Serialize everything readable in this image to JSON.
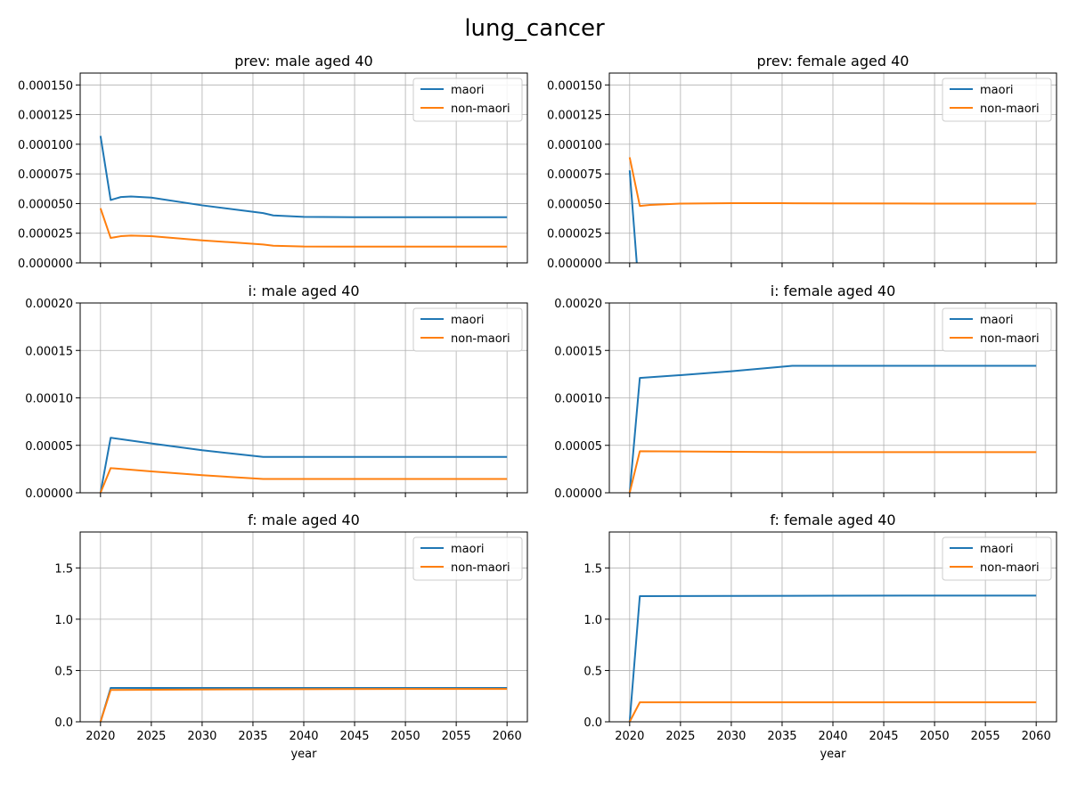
{
  "figure": {
    "title": "lung_cancer"
  },
  "colors": {
    "maori": "#1f77b4",
    "non_maori": "#ff7f0e",
    "grid": "#b0b0b0",
    "axis": "#000000"
  },
  "chart_data": [
    {
      "type": "line",
      "title": "prev: male aged 40",
      "xlabel": "",
      "xlim": [
        2018,
        2062
      ],
      "ylim": [
        0,
        0.00016
      ],
      "xticks": [
        2020,
        2025,
        2030,
        2035,
        2040,
        2045,
        2050,
        2055,
        2060
      ],
      "yticks": [
        "0.000000",
        "0.000025",
        "0.000050",
        "0.000075",
        "0.000100",
        "0.000125",
        "0.000150"
      ],
      "ytick_values": [
        0,
        2.5e-05,
        5e-05,
        7.5e-05,
        0.0001,
        0.000125,
        0.00015
      ],
      "show_xtick_labels": false,
      "grid": true,
      "legend": "top-right",
      "series": [
        {
          "name": "maori",
          "x": [
            2020,
            2021,
            2022,
            2023,
            2025,
            2030,
            2036,
            2037,
            2040,
            2045,
            2050,
            2060
          ],
          "values": [
            0.000107,
            5.3e-05,
            5.55e-05,
            5.6e-05,
            5.5e-05,
            4.85e-05,
            4.2e-05,
            4e-05,
            3.88e-05,
            3.85e-05,
            3.85e-05,
            3.85e-05
          ]
        },
        {
          "name": "non-maori",
          "x": [
            2020,
            2021,
            2022,
            2023,
            2025,
            2030,
            2036,
            2037,
            2040,
            2045,
            2050,
            2060
          ],
          "values": [
            4.6e-05,
            2.1e-05,
            2.25e-05,
            2.3e-05,
            2.25e-05,
            1.9e-05,
            1.55e-05,
            1.45e-05,
            1.38e-05,
            1.37e-05,
            1.37e-05,
            1.37e-05
          ]
        }
      ]
    },
    {
      "type": "line",
      "title": "prev: female aged 40",
      "xlabel": "",
      "xlim": [
        2018,
        2062
      ],
      "ylim": [
        0,
        0.00016
      ],
      "xticks": [
        2020,
        2025,
        2030,
        2035,
        2040,
        2045,
        2050,
        2055,
        2060
      ],
      "yticks": [
        "0.000000",
        "0.000025",
        "0.000050",
        "0.000075",
        "0.000100",
        "0.000125",
        "0.000150"
      ],
      "ytick_values": [
        0,
        2.5e-05,
        5e-05,
        7.5e-05,
        0.0001,
        0.000125,
        0.00015
      ],
      "show_xtick_labels": false,
      "grid": true,
      "legend": "top-right",
      "series": [
        {
          "name": "maori",
          "x": [
            2020,
            2020.7
          ],
          "values": [
            7.8e-05,
            0
          ]
        },
        {
          "name": "non-maori",
          "x": [
            2020,
            2021,
            2022,
            2025,
            2030,
            2035,
            2040,
            2050,
            2060
          ],
          "values": [
            8.9e-05,
            4.8e-05,
            4.88e-05,
            5e-05,
            5.03e-05,
            5.03e-05,
            5.01e-05,
            5e-05,
            5e-05
          ]
        }
      ]
    },
    {
      "type": "line",
      "title": "i: male aged 40",
      "xlabel": "",
      "xlim": [
        2018,
        2062
      ],
      "ylim": [
        0,
        0.0002
      ],
      "xticks": [
        2020,
        2025,
        2030,
        2035,
        2040,
        2045,
        2050,
        2055,
        2060
      ],
      "yticks": [
        "0.00000",
        "0.00005",
        "0.00010",
        "0.00015",
        "0.00020"
      ],
      "ytick_values": [
        0,
        5e-05,
        0.0001,
        0.00015,
        0.0002
      ],
      "show_xtick_labels": false,
      "grid": true,
      "legend": "top-right",
      "series": [
        {
          "name": "maori",
          "x": [
            2020,
            2021,
            2025,
            2030,
            2036,
            2040,
            2050,
            2060
          ],
          "values": [
            0,
            5.8e-05,
            5.2e-05,
            4.48e-05,
            3.78e-05,
            3.78e-05,
            3.78e-05,
            3.78e-05
          ]
        },
        {
          "name": "non-maori",
          "x": [
            2020,
            2021,
            2025,
            2030,
            2036,
            2040,
            2050,
            2060
          ],
          "values": [
            0,
            2.6e-05,
            2.25e-05,
            1.85e-05,
            1.45e-05,
            1.45e-05,
            1.45e-05,
            1.45e-05
          ]
        }
      ]
    },
    {
      "type": "line",
      "title": "i: female aged 40",
      "xlabel": "",
      "xlim": [
        2018,
        2062
      ],
      "ylim": [
        0,
        0.0002
      ],
      "xticks": [
        2020,
        2025,
        2030,
        2035,
        2040,
        2045,
        2050,
        2055,
        2060
      ],
      "yticks": [
        "0.00000",
        "0.00005",
        "0.00010",
        "0.00015",
        "0.00020"
      ],
      "ytick_values": [
        0,
        5e-05,
        0.0001,
        0.00015,
        0.0002
      ],
      "show_xtick_labels": false,
      "grid": true,
      "legend": "top-right",
      "series": [
        {
          "name": "maori",
          "x": [
            2020,
            2021,
            2025,
            2030,
            2036,
            2040,
            2050,
            2060
          ],
          "values": [
            0,
            0.000121,
            0.000124,
            0.000128,
            0.0001338,
            0.0001338,
            0.0001338,
            0.0001338
          ]
        },
        {
          "name": "non-maori",
          "x": [
            2020,
            2021,
            2025,
            2030,
            2036,
            2040,
            2050,
            2060
          ],
          "values": [
            0,
            4.38e-05,
            4.35e-05,
            4.32e-05,
            4.28e-05,
            4.28e-05,
            4.28e-05,
            4.28e-05
          ]
        }
      ]
    },
    {
      "type": "line",
      "title": "f: male aged 40",
      "xlabel": "year",
      "xlim": [
        2018,
        2062
      ],
      "ylim": [
        0,
        1.85
      ],
      "xticks": [
        2020,
        2025,
        2030,
        2035,
        2040,
        2045,
        2050,
        2055,
        2060
      ],
      "yticks": [
        "0.0",
        "0.5",
        "1.0",
        "1.5"
      ],
      "ytick_values": [
        0,
        0.5,
        1.0,
        1.5
      ],
      "show_xtick_labels": true,
      "grid": true,
      "legend": "top-right",
      "series": [
        {
          "name": "maori",
          "x": [
            2020,
            2021,
            2030,
            2040,
            2050,
            2060
          ],
          "values": [
            0,
            0.33,
            0.33,
            0.33,
            0.33,
            0.33
          ]
        },
        {
          "name": "non-maori",
          "x": [
            2020,
            2021,
            2030,
            2040,
            2050,
            2060
          ],
          "values": [
            0,
            0.31,
            0.315,
            0.318,
            0.32,
            0.32
          ]
        }
      ]
    },
    {
      "type": "line",
      "title": "f: female aged 40",
      "xlabel": "year",
      "xlim": [
        2018,
        2062
      ],
      "ylim": [
        0,
        1.85
      ],
      "xticks": [
        2020,
        2025,
        2030,
        2035,
        2040,
        2045,
        2050,
        2055,
        2060
      ],
      "yticks": [
        "0.0",
        "0.5",
        "1.0",
        "1.5"
      ],
      "ytick_values": [
        0,
        0.5,
        1.0,
        1.5
      ],
      "show_xtick_labels": true,
      "grid": true,
      "legend": "top-right",
      "series": [
        {
          "name": "maori",
          "x": [
            2020,
            2021,
            2030,
            2040,
            2050,
            2060
          ],
          "values": [
            0,
            1.225,
            1.227,
            1.229,
            1.23,
            1.23
          ]
        },
        {
          "name": "non-maori",
          "x": [
            2020,
            2021,
            2030,
            2040,
            2050,
            2060
          ],
          "values": [
            0,
            0.19,
            0.19,
            0.19,
            0.19,
            0.19
          ]
        }
      ]
    }
  ]
}
